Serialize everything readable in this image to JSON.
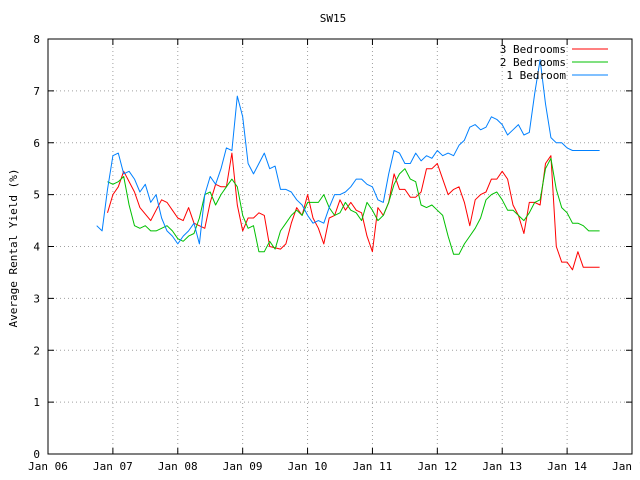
{
  "chart_data": {
    "type": "line",
    "title": "SW15",
    "xlabel": "",
    "ylabel": "Average Rental Yield (%)",
    "xlim": [
      "2006-01",
      "2015-01"
    ],
    "ylim": [
      0,
      8
    ],
    "grid": true,
    "legend": "top-right",
    "x_ticks": [
      "Jan 06",
      "Jan 07",
      "Jan 08",
      "Jan 09",
      "Jan 10",
      "Jan 11",
      "Jan 12",
      "Jan 13",
      "Jan 14",
      "Jan 15"
    ],
    "y_ticks": [
      "0",
      "1",
      "2",
      "3",
      "4",
      "5",
      "6",
      "7",
      "8"
    ],
    "series": [
      {
        "name": "3 Bedrooms",
        "color": "#ff0000",
        "x": [
          "2006-12",
          "2007-01",
          "2007-02",
          "2007-03",
          "2007-05",
          "2007-06",
          "2007-08",
          "2007-09",
          "2007-10",
          "2007-11",
          "2007-12",
          "2008-01",
          "2008-02",
          "2008-03",
          "2008-04",
          "2008-06",
          "2008-07",
          "2008-08",
          "2008-09",
          "2008-10",
          "2008-11",
          "2008-12",
          "2009-01",
          "2009-02",
          "2009-03",
          "2009-04",
          "2009-05",
          "2009-06",
          "2009-08",
          "2009-09",
          "2009-10",
          "2009-11",
          "2009-12",
          "2010-01",
          "2010-02",
          "2010-03",
          "2010-04",
          "2010-05",
          "2010-06",
          "2010-07",
          "2010-08",
          "2010-09",
          "2010-10",
          "2010-11",
          "2010-12",
          "2011-01",
          "2011-02",
          "2011-03",
          "2011-04",
          "2011-05",
          "2011-06",
          "2011-07",
          "2011-08",
          "2011-09",
          "2011-10",
          "2011-11",
          "2011-12",
          "2012-01",
          "2012-02",
          "2012-03",
          "2012-04",
          "2012-05",
          "2012-06",
          "2012-07",
          "2012-08",
          "2012-09",
          "2012-10",
          "2012-11",
          "2012-12",
          "2013-01",
          "2013-02",
          "2013-03",
          "2013-04",
          "2013-05",
          "2013-06",
          "2013-07",
          "2013-08",
          "2013-09",
          "2013-10",
          "2013-11",
          "2013-12",
          "2014-01",
          "2014-02",
          "2014-03",
          "2014-04",
          "2014-05",
          "2014-06",
          "2014-07"
        ],
        "values": [
          4.65,
          5.0,
          5.15,
          5.45,
          5.05,
          4.75,
          4.5,
          4.7,
          4.9,
          4.85,
          4.7,
          4.55,
          4.5,
          4.75,
          4.45,
          4.35,
          4.85,
          5.2,
          5.15,
          5.15,
          5.8,
          4.8,
          4.3,
          4.55,
          4.55,
          4.65,
          4.6,
          4.0,
          3.95,
          4.05,
          4.45,
          4.75,
          4.6,
          5.0,
          4.55,
          4.35,
          4.05,
          4.55,
          4.6,
          4.9,
          4.7,
          4.85,
          4.7,
          4.65,
          4.2,
          3.9,
          4.75,
          4.6,
          4.85,
          5.4,
          5.1,
          5.1,
          4.95,
          4.95,
          5.05,
          5.5,
          5.5,
          5.6,
          5.3,
          5.0,
          5.1,
          5.15,
          4.85,
          4.4,
          4.9,
          5.0,
          5.05,
          5.3,
          5.3,
          5.45,
          5.3,
          4.8,
          4.6,
          4.25,
          4.85,
          4.85,
          4.8,
          5.6,
          5.75,
          4.0,
          3.7,
          3.7,
          3.55,
          3.9,
          3.6,
          3.6,
          3.6,
          3.6
        ]
      },
      {
        "name": "2 Bedrooms",
        "color": "#00c000",
        "x": [
          "2006-12",
          "2007-01",
          "2007-02",
          "2007-03",
          "2007-04",
          "2007-05",
          "2007-06",
          "2007-07",
          "2007-08",
          "2007-09",
          "2007-10",
          "2007-11",
          "2007-12",
          "2008-01",
          "2008-02",
          "2008-03",
          "2008-04",
          "2008-05",
          "2008-06",
          "2008-07",
          "2008-08",
          "2008-09",
          "2008-10",
          "2008-11",
          "2008-12",
          "2009-01",
          "2009-02",
          "2009-03",
          "2009-04",
          "2009-05",
          "2009-06",
          "2009-07",
          "2009-08",
          "2009-09",
          "2009-10",
          "2009-11",
          "2009-12",
          "2010-01",
          "2010-02",
          "2010-03",
          "2010-04",
          "2010-05",
          "2010-06",
          "2010-07",
          "2010-08",
          "2010-09",
          "2010-10",
          "2010-11",
          "2010-12",
          "2011-01",
          "2011-02",
          "2011-03",
          "2011-04",
          "2011-05",
          "2011-06",
          "2011-07",
          "2011-08",
          "2011-09",
          "2011-10",
          "2011-11",
          "2011-12",
          "2012-01",
          "2012-02",
          "2012-03",
          "2012-04",
          "2012-05",
          "2012-06",
          "2012-07",
          "2012-08",
          "2012-09",
          "2012-10",
          "2012-11",
          "2012-12",
          "2013-01",
          "2013-02",
          "2013-03",
          "2013-04",
          "2013-05",
          "2013-06",
          "2013-07",
          "2013-08",
          "2013-09",
          "2013-10",
          "2013-11",
          "2013-12",
          "2014-01",
          "2014-02",
          "2014-03",
          "2014-04",
          "2014-05",
          "2014-06",
          "2014-07"
        ],
        "values": [
          5.25,
          5.2,
          5.25,
          5.35,
          4.8,
          4.4,
          4.35,
          4.4,
          4.3,
          4.3,
          4.35,
          4.4,
          4.3,
          4.15,
          4.1,
          4.2,
          4.25,
          4.55,
          5.0,
          5.05,
          4.8,
          5.0,
          5.15,
          5.3,
          5.15,
          4.6,
          4.35,
          4.4,
          3.9,
          3.9,
          4.1,
          3.95,
          4.3,
          4.45,
          4.6,
          4.7,
          4.6,
          4.85,
          4.85,
          4.85,
          5.0,
          4.75,
          4.6,
          4.65,
          4.85,
          4.7,
          4.65,
          4.5,
          4.85,
          4.7,
          4.5,
          4.6,
          4.85,
          5.2,
          5.4,
          5.5,
          5.3,
          5.25,
          4.8,
          4.75,
          4.8,
          4.7,
          4.6,
          4.2,
          3.85,
          3.85,
          4.05,
          4.2,
          4.35,
          4.55,
          4.9,
          5.0,
          5.05,
          4.9,
          4.7,
          4.7,
          4.6,
          4.5,
          4.65,
          4.85,
          4.9,
          5.5,
          5.7,
          5.1,
          4.75,
          4.65,
          4.45,
          4.45,
          4.4,
          4.3,
          4.3,
          4.3
        ]
      },
      {
        "name": "1 Bedroom",
        "color": "#0080ff",
        "x": [
          "2006-10",
          "2006-11",
          "2006-12",
          "2007-01",
          "2007-02",
          "2007-03",
          "2007-04",
          "2007-05",
          "2007-06",
          "2007-07",
          "2007-08",
          "2007-09",
          "2007-10",
          "2007-11",
          "2007-12",
          "2008-01",
          "2008-02",
          "2008-03",
          "2008-04",
          "2008-05",
          "2008-06",
          "2008-07",
          "2008-08",
          "2008-09",
          "2008-10",
          "2008-11",
          "2008-12",
          "2009-01",
          "2009-02",
          "2009-03",
          "2009-04",
          "2009-05",
          "2009-06",
          "2009-07",
          "2009-08",
          "2009-09",
          "2009-10",
          "2009-11",
          "2009-12",
          "2010-01",
          "2010-02",
          "2010-03",
          "2010-04",
          "2010-05",
          "2010-06",
          "2010-07",
          "2010-08",
          "2010-09",
          "2010-10",
          "2010-11",
          "2010-12",
          "2011-01",
          "2011-02",
          "2011-03",
          "2011-04",
          "2011-05",
          "2011-06",
          "2011-07",
          "2011-08",
          "2011-09",
          "2011-10",
          "2011-11",
          "2011-12",
          "2012-01",
          "2012-02",
          "2012-03",
          "2012-04",
          "2012-05",
          "2012-06",
          "2012-07",
          "2012-08",
          "2012-09",
          "2012-10",
          "2012-11",
          "2012-12",
          "2013-01",
          "2013-02",
          "2013-03",
          "2013-04",
          "2013-05",
          "2013-06",
          "2013-07",
          "2013-08",
          "2013-09",
          "2013-10",
          "2013-11",
          "2013-12",
          "2014-01",
          "2014-02",
          "2014-03",
          "2014-04",
          "2014-05",
          "2014-06",
          "2014-07"
        ],
        "values": [
          4.4,
          4.3,
          5.1,
          5.75,
          5.8,
          5.4,
          5.45,
          5.3,
          5.05,
          5.2,
          4.85,
          5.0,
          4.55,
          4.3,
          4.2,
          4.05,
          4.2,
          4.3,
          4.45,
          4.05,
          5.0,
          5.35,
          5.2,
          5.5,
          5.9,
          5.85,
          6.9,
          6.5,
          5.6,
          5.4,
          5.6,
          5.8,
          5.5,
          5.55,
          5.1,
          5.1,
          5.05,
          4.9,
          4.8,
          4.6,
          4.45,
          4.5,
          4.45,
          4.75,
          5.0,
          5.0,
          5.05,
          5.15,
          5.3,
          5.3,
          5.2,
          5.15,
          4.9,
          4.85,
          5.4,
          5.85,
          5.8,
          5.6,
          5.6,
          5.8,
          5.65,
          5.75,
          5.7,
          5.85,
          5.75,
          5.8,
          5.75,
          5.95,
          6.05,
          6.3,
          6.35,
          6.25,
          6.3,
          6.5,
          6.45,
          6.35,
          6.15,
          6.25,
          6.35,
          6.15,
          6.2,
          6.95,
          7.6,
          6.75,
          6.1,
          6.0,
          6.0,
          5.9,
          5.85,
          5.85,
          5.85,
          5.85,
          5.85,
          5.85
        ]
      }
    ]
  }
}
